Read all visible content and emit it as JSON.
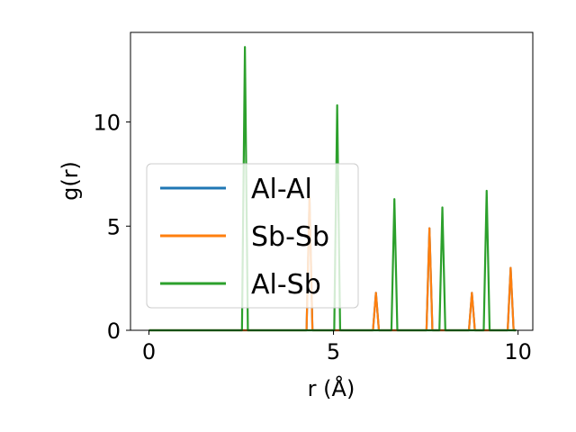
{
  "chart_data": {
    "type": "line",
    "xlabel": "r (Å)",
    "ylabel": "g(r)",
    "xlim": [
      -0.5,
      10.4
    ],
    "ylim": [
      0,
      14.3
    ],
    "xticks": [
      0,
      5,
      10
    ],
    "yticks": [
      0,
      5,
      10
    ],
    "grid": false,
    "legend_position": "center-left",
    "series": [
      {
        "name": "Al-Al",
        "color": "#1f77b4",
        "peaks": [
          [
            4.35,
            6.4
          ],
          [
            6.15,
            1.8
          ],
          [
            7.6,
            4.9
          ],
          [
            8.75,
            1.8
          ],
          [
            9.8,
            3.0
          ]
        ]
      },
      {
        "name": "Sb-Sb",
        "color": "#ff7f0e",
        "peaks": [
          [
            4.35,
            6.4
          ],
          [
            6.15,
            1.8
          ],
          [
            7.6,
            4.9
          ],
          [
            8.75,
            1.8
          ],
          [
            9.8,
            3.0
          ]
        ]
      },
      {
        "name": "Al-Sb",
        "color": "#2ca02c",
        "peaks": [
          [
            2.6,
            13.6
          ],
          [
            5.1,
            10.8
          ],
          [
            6.65,
            6.3
          ],
          [
            7.95,
            5.9
          ],
          [
            9.15,
            6.7
          ]
        ]
      }
    ],
    "peak_halfwidth": 0.08,
    "x_range": [
      0,
      9.95
    ]
  }
}
